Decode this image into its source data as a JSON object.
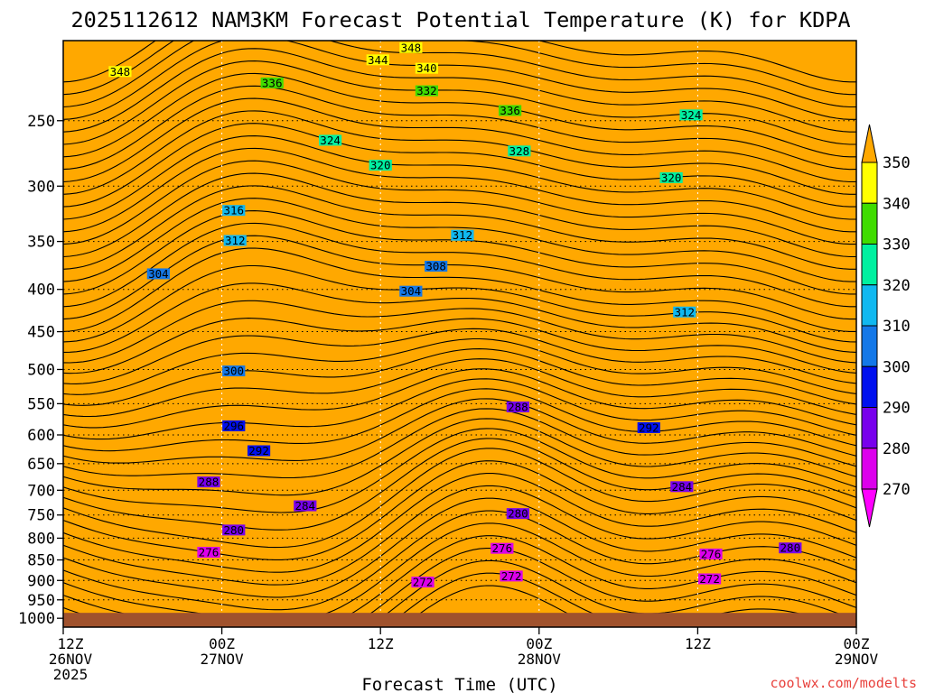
{
  "title": "2025112612 NAM3KM Forecast Potential Temperature (K) for KDPA",
  "credit": "coolwx.com/modelts",
  "xlabel": "Forecast Time (UTC)",
  "chart_data": {
    "type": "heatmap",
    "title": "2025112612 NAM3KM Forecast Potential Temperature (K) for KDPA",
    "xlabel": "Forecast Time (UTC)",
    "ylabel": "",
    "x_ticks": [
      {
        "line1": "12Z",
        "line2": "26NOV",
        "line3": "2025",
        "hour": 0
      },
      {
        "line1": "00Z",
        "line2": "27NOV",
        "line3": "",
        "hour": 12
      },
      {
        "line1": "12Z",
        "line2": "",
        "line3": "",
        "hour": 24
      },
      {
        "line1": "00Z",
        "line2": "28NOV",
        "line3": "",
        "hour": 36
      },
      {
        "line1": "12Z",
        "line2": "",
        "line3": "",
        "hour": 48
      },
      {
        "line1": "00Z",
        "line2": "29NOV",
        "line3": "",
        "hour": 60
      }
    ],
    "xlim": [
      0,
      60
    ],
    "y_ticks": [
      250,
      300,
      350,
      400,
      450,
      500,
      550,
      600,
      650,
      700,
      750,
      800,
      850,
      900,
      950,
      1000
    ],
    "ylim": [
      1025,
      200
    ],
    "y_scale": "log",
    "y_reversed": true,
    "colorbar": {
      "labels": [
        350,
        340,
        330,
        320,
        310,
        300,
        290,
        280,
        270
      ],
      "bins": [
        {
          "from": 340,
          "to": 350,
          "color": "#ffff00"
        },
        {
          "from": 330,
          "to": 340,
          "color": "#40dc00"
        },
        {
          "from": 320,
          "to": 330,
          "color": "#00f0a0"
        },
        {
          "from": 310,
          "to": 320,
          "color": "#10b8f0"
        },
        {
          "from": 300,
          "to": 310,
          "color": "#1478e8"
        },
        {
          "from": 290,
          "to": 300,
          "color": "#0010ee"
        },
        {
          "from": 280,
          "to": 290,
          "color": "#7800ec"
        },
        {
          "from": 270,
          "to": 280,
          "color": "#dc00ec"
        }
      ],
      "over_color": "#ffa800",
      "under_color": "#ff00ff"
    },
    "ground_color": "#a0522d",
    "contour_interval": 2,
    "contour_labels": [
      {
        "text": "348",
        "hour": 4.3,
        "p": 218
      },
      {
        "text": "348",
        "hour": 26.3,
        "p": 204
      },
      {
        "text": "344",
        "hour": 23.8,
        "p": 211
      },
      {
        "text": "340",
        "hour": 27.5,
        "p": 216
      },
      {
        "text": "336",
        "hour": 15.8,
        "p": 225
      },
      {
        "text": "336",
        "hour": 33.8,
        "p": 243
      },
      {
        "text": "332",
        "hour": 27.5,
        "p": 230
      },
      {
        "text": "328",
        "hour": 34.5,
        "p": 272
      },
      {
        "text": "324",
        "hour": 20.2,
        "p": 264
      },
      {
        "text": "324",
        "hour": 47.5,
        "p": 246
      },
      {
        "text": "320",
        "hour": 24.0,
        "p": 283
      },
      {
        "text": "320",
        "hour": 46.0,
        "p": 293
      },
      {
        "text": "316",
        "hour": 12.9,
        "p": 321
      },
      {
        "text": "312",
        "hour": 13.0,
        "p": 349
      },
      {
        "text": "312",
        "hour": 30.2,
        "p": 344
      },
      {
        "text": "312",
        "hour": 47.0,
        "p": 426
      },
      {
        "text": "308",
        "hour": 28.2,
        "p": 375
      },
      {
        "text": "304",
        "hour": 7.2,
        "p": 383
      },
      {
        "text": "304",
        "hour": 26.3,
        "p": 402
      },
      {
        "text": "300",
        "hour": 12.9,
        "p": 502
      },
      {
        "text": "296",
        "hour": 12.9,
        "p": 585
      },
      {
        "text": "292",
        "hour": 14.8,
        "p": 627
      },
      {
        "text": "292",
        "hour": 44.3,
        "p": 588
      },
      {
        "text": "288",
        "hour": 11.0,
        "p": 684
      },
      {
        "text": "288",
        "hour": 34.4,
        "p": 555
      },
      {
        "text": "284",
        "hour": 18.3,
        "p": 731
      },
      {
        "text": "284",
        "hour": 46.8,
        "p": 693
      },
      {
        "text": "280",
        "hour": 12.9,
        "p": 782
      },
      {
        "text": "280",
        "hour": 34.4,
        "p": 747
      },
      {
        "text": "280",
        "hour": 55.0,
        "p": 822
      },
      {
        "text": "276",
        "hour": 11.0,
        "p": 832
      },
      {
        "text": "276",
        "hour": 33.2,
        "p": 823
      },
      {
        "text": "276",
        "hour": 49.0,
        "p": 836
      },
      {
        "text": "272",
        "hour": 27.2,
        "p": 904
      },
      {
        "text": "272",
        "hour": 33.9,
        "p": 889
      },
      {
        "text": "272",
        "hour": 48.9,
        "p": 896
      }
    ]
  }
}
